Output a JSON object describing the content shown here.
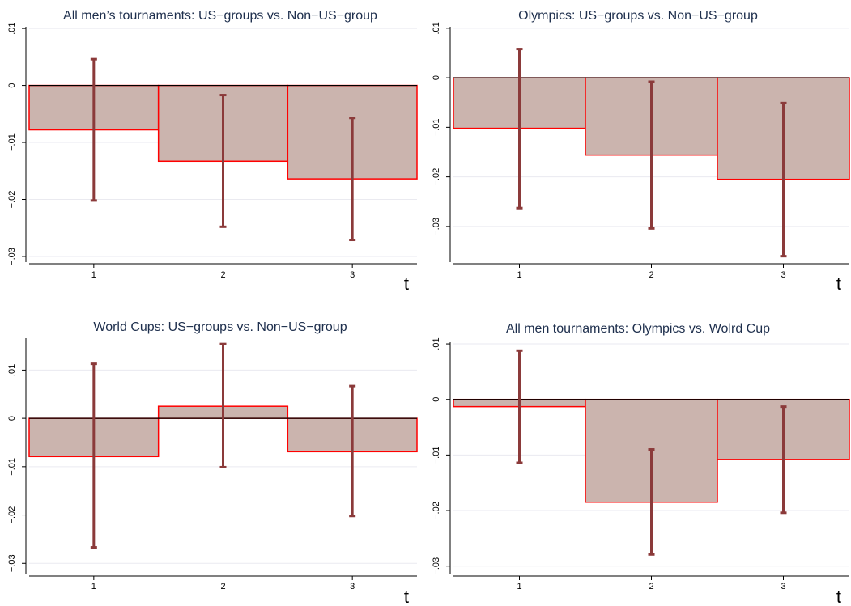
{
  "colors": {
    "bar_fill": "#cbb4ae",
    "bar_edge": "#ff0000",
    "error_bar": "#8b3a3a",
    "grid": "#eaeaf0",
    "title": "#1e2f4d"
  },
  "chart_data": [
    {
      "type": "bar",
      "title": "All men’s tournaments: US−groups vs. Non−US−group",
      "xlabel": "t",
      "ylabel": "",
      "categories": [
        "1",
        "2",
        "3"
      ],
      "values": [
        -0.0078,
        -0.0133,
        -0.0164
      ],
      "ci_low": [
        -0.0202,
        -0.0248,
        -0.0271
      ],
      "ci_high": [
        0.0046,
        -0.0017,
        -0.0057
      ],
      "ylim": [
        -0.031,
        0.0103
      ],
      "yticks": [
        0.01,
        0,
        -0.01,
        -0.02,
        -0.03
      ],
      "ytick_labels": [
        ".01",
        "0",
        "−.01",
        "−.02",
        "−.03"
      ],
      "grid": true
    },
    {
      "type": "bar",
      "title": "Olympics: US−groups vs. Non−US−group",
      "xlabel": "t",
      "ylabel": "",
      "categories": [
        "1",
        "2",
        "3"
      ],
      "values": [
        -0.0102,
        -0.0156,
        -0.0205
      ],
      "ci_low": [
        -0.0263,
        -0.0304,
        -0.036
      ],
      "ci_high": [
        0.0058,
        -0.0008,
        -0.0051
      ],
      "ylim": [
        -0.0372,
        0.0103
      ],
      "yticks": [
        0.01,
        0,
        -0.01,
        -0.02,
        -0.03
      ],
      "ytick_labels": [
        ".01",
        "0",
        "−.01",
        "−.02",
        "−.03"
      ],
      "grid": true
    },
    {
      "type": "bar",
      "title": "World Cups: US−groups vs. Non−US−group",
      "xlabel": "t",
      "ylabel": "",
      "categories": [
        "1",
        "2",
        "3"
      ],
      "values": [
        -0.0079,
        0.0025,
        -0.0069
      ],
      "ci_low": [
        -0.0267,
        -0.0101,
        -0.0202
      ],
      "ci_high": [
        0.0113,
        0.0154,
        0.0067
      ],
      "ylim": [
        -0.0323,
        0.0166
      ],
      "yticks": [
        0.01,
        0,
        -0.01,
        -0.02,
        -0.03
      ],
      "ytick_labels": [
        ".01",
        "0",
        "−.01",
        "−.02",
        "−.03"
      ],
      "grid": true
    },
    {
      "type": "bar",
      "title": "All men tournaments: Olympics vs. Wolrd Cup",
      "xlabel": "t",
      "ylabel": "",
      "categories": [
        "1",
        "2",
        "3"
      ],
      "values": [
        -0.0013,
        -0.0185,
        -0.0108
      ],
      "ci_low": [
        -0.0114,
        -0.0279,
        -0.0204
      ],
      "ci_high": [
        0.0088,
        -0.009,
        -0.0013
      ],
      "ylim": [
        -0.0315,
        0.0103
      ],
      "yticks": [
        0.01,
        0,
        -0.01,
        -0.02,
        -0.03
      ],
      "ytick_labels": [
        ".01",
        "0",
        "−.01",
        "−.02",
        "−.03"
      ],
      "grid": true
    }
  ]
}
